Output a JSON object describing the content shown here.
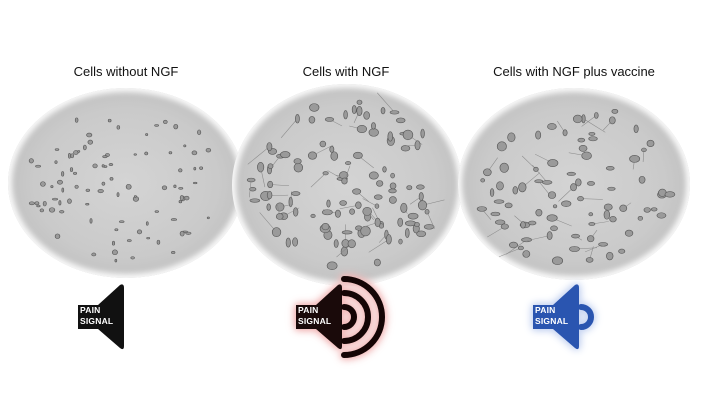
{
  "panels": [
    {
      "title": "Cells without NGF",
      "signal_label": [
        "PAIN",
        "SIGNAL"
      ],
      "speaker_color": "#111111",
      "sound_waves": 0,
      "glow": "none"
    },
    {
      "title": "Cells with NGF",
      "signal_label": [
        "PAIN",
        "SIGNAL"
      ],
      "speaker_color": "#1a0a0a",
      "sound_waves": 3,
      "glow": "#f2b8b8"
    },
    {
      "title": "Cells with NGF plus vaccine",
      "signal_label": [
        "PAIN",
        "SIGNAL"
      ],
      "speaker_color": "#2a55b0",
      "sound_waves": 1,
      "glow": "#c9d6f2"
    }
  ]
}
